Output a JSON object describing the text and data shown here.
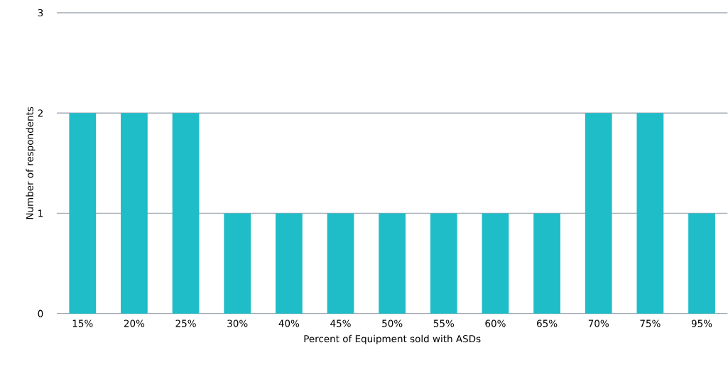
{
  "chart_data": {
    "type": "bar",
    "xlabel": "Percent of Equipment sold with ASDs",
    "ylabel": "Number of respondents",
    "categories": [
      "15%",
      "20%",
      "25%",
      "30%",
      "40%",
      "45%",
      "50%",
      "55%",
      "60%",
      "65%",
      "70%",
      "75%",
      "95%"
    ],
    "values": [
      2,
      2,
      2,
      1,
      1,
      1,
      1,
      1,
      1,
      1,
      2,
      2,
      1
    ],
    "color": "#1fbdc8",
    "ylim": [
      0,
      3
    ],
    "yticks": [
      0,
      1,
      2,
      3
    ],
    "grid": "y"
  }
}
